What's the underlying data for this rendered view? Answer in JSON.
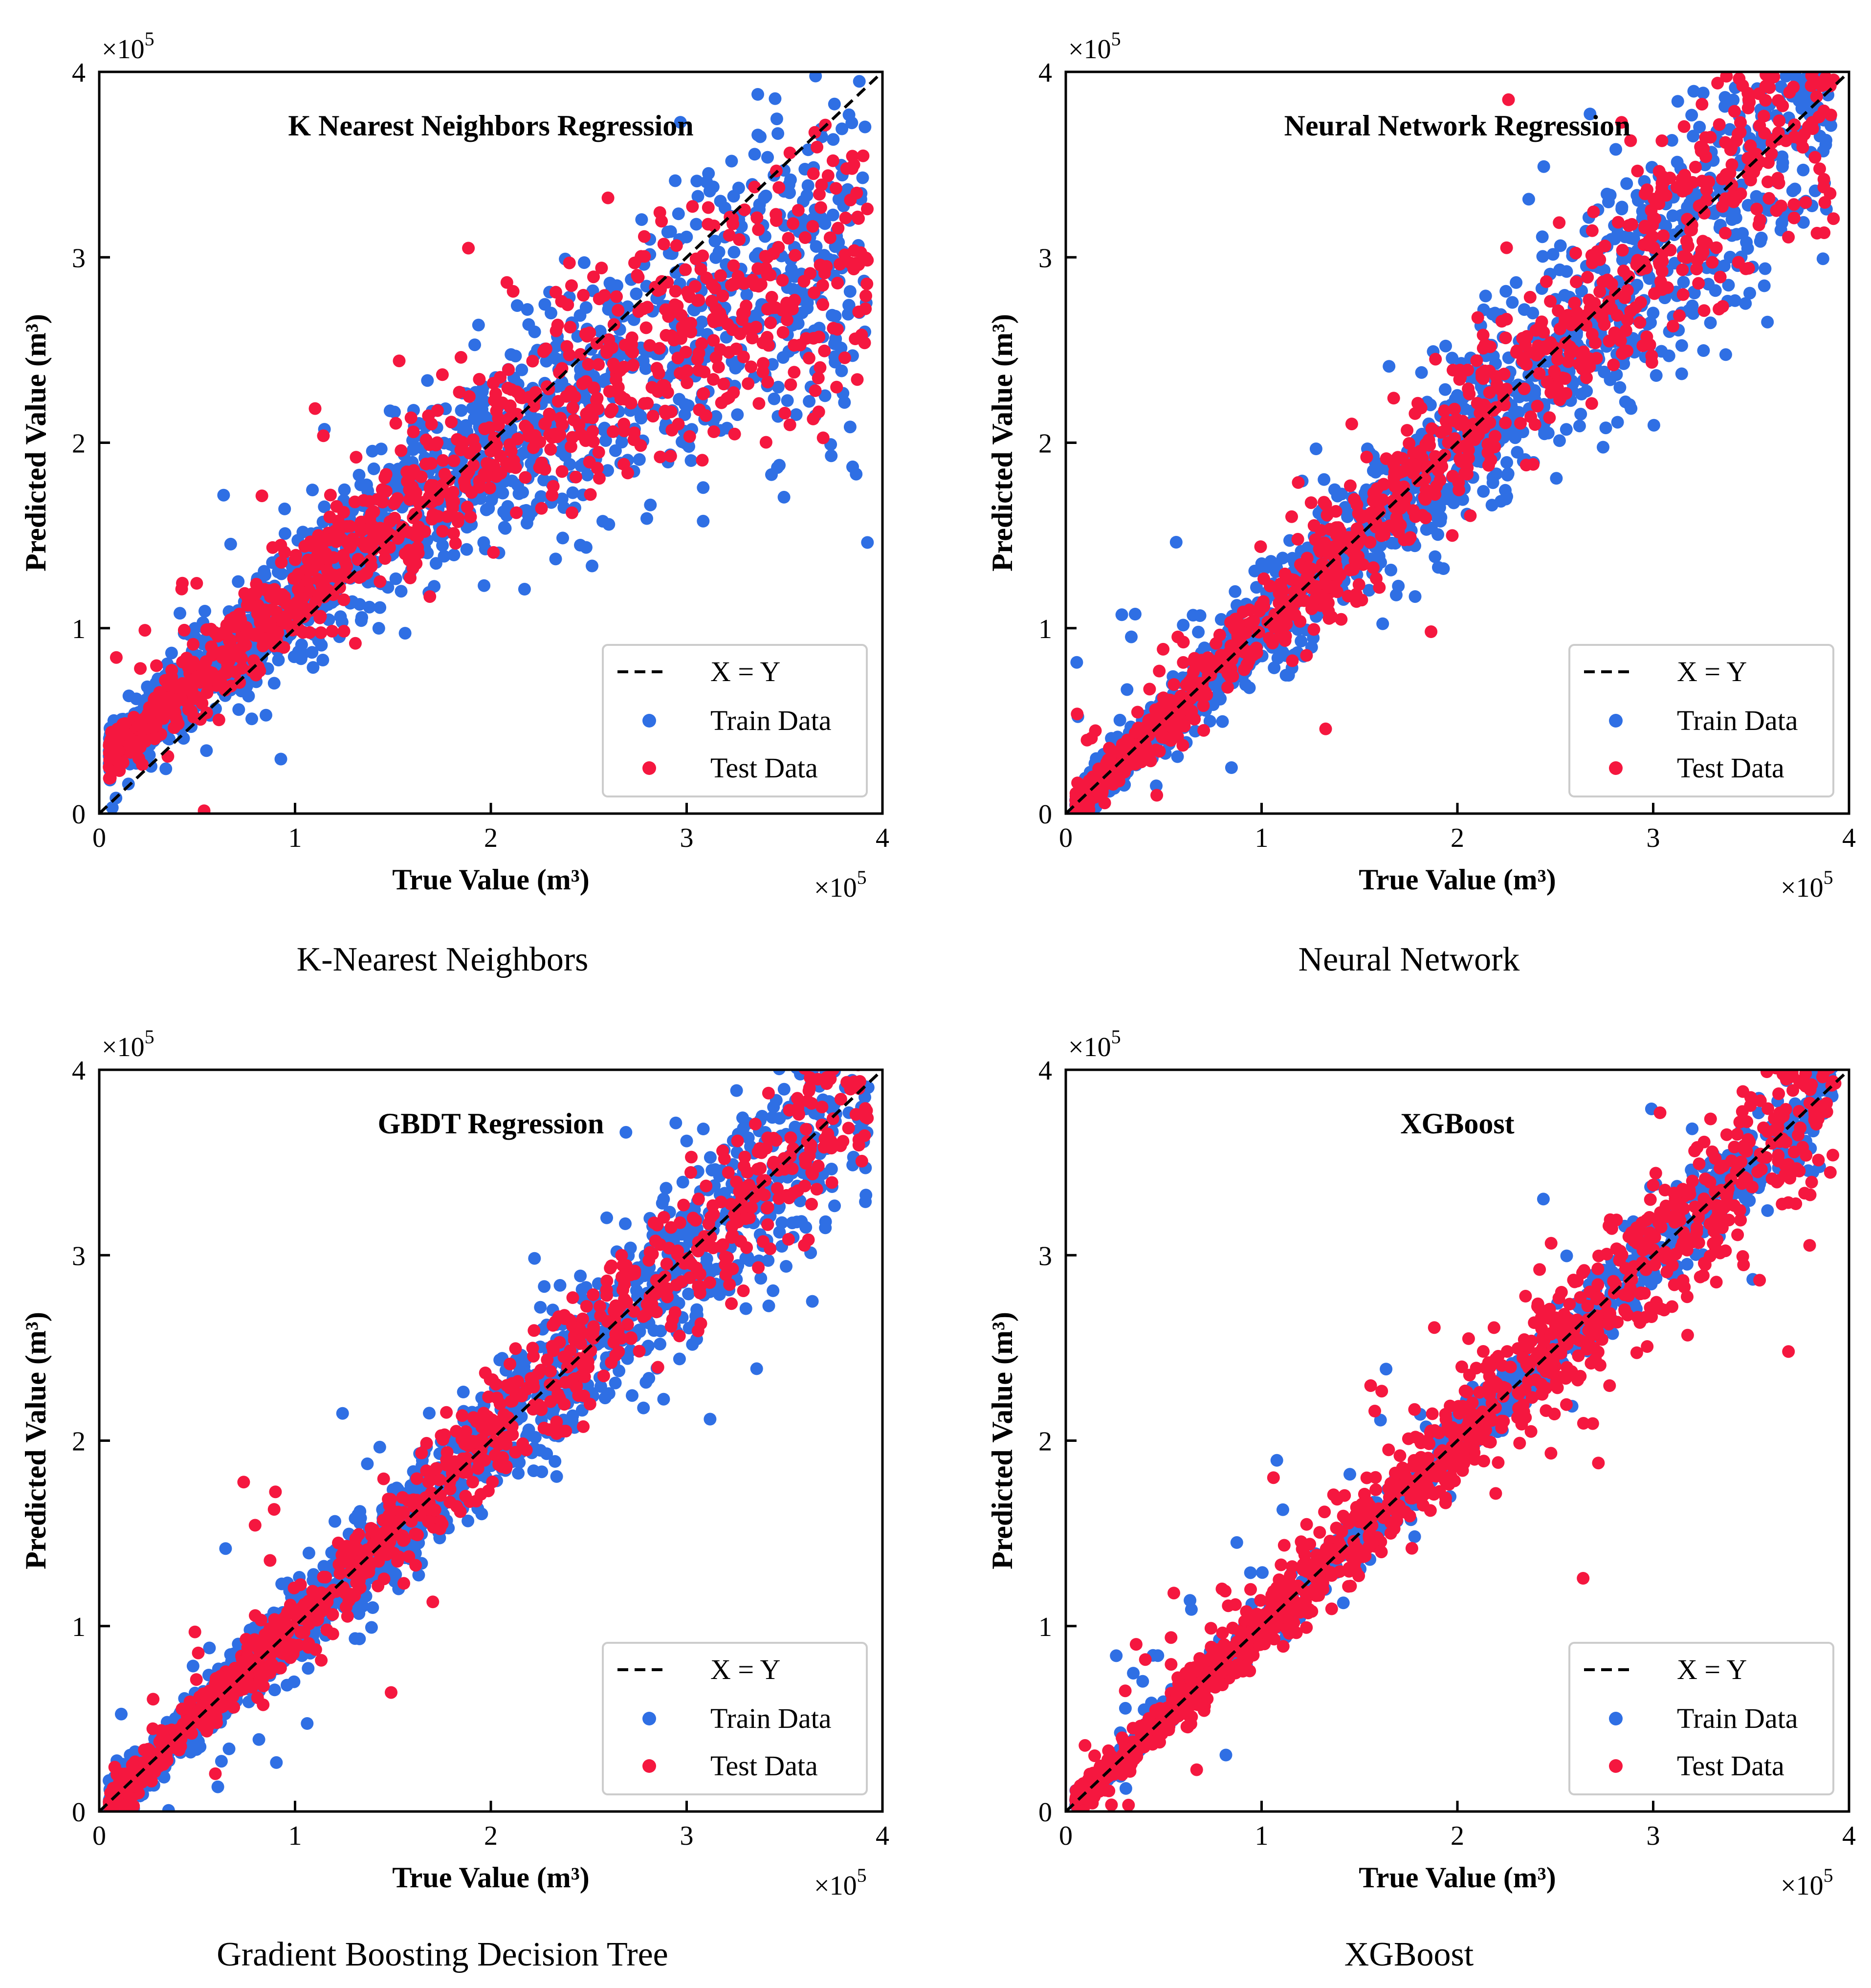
{
  "colors": {
    "train": "#2f6fe4",
    "test": "#f5173f",
    "axis": "#000000",
    "line": "#000000",
    "legend_border": "#cccccc"
  },
  "axes": {
    "xlabel": "True Value (m³)",
    "ylabel": "Predicted Value (m³)",
    "exponent_label": "×10",
    "exponent_power": "5",
    "tick_labels": [
      "0",
      "1",
      "2",
      "3",
      "4"
    ]
  },
  "legend": {
    "line_label": "X = Y",
    "train_label": "Train Data",
    "test_label": "Test Data"
  },
  "chart_data": [
    {
      "type": "scatter",
      "title": "K Nearest Neighbors Regression",
      "caption": "K-Nearest Neighbors",
      "xlabel": "True Value (m³)",
      "ylabel": "Predicted Value (m³)",
      "xlim": [
        0,
        4
      ],
      "ylim": [
        0,
        4
      ],
      "unit_multiplier": 100000,
      "series": [
        {
          "name": "Train Data",
          "color": "#2f6fe4",
          "n": 1500,
          "trend": "knn",
          "spread_abs": 0.06,
          "spread_rel": 0.12,
          "seed": 11
        },
        {
          "name": "Test Data",
          "color": "#f5173f",
          "n": 1000,
          "trend": "knn",
          "spread_abs": 0.05,
          "spread_rel": 0.09,
          "seed": 12
        }
      ],
      "reference_line": {
        "name": "X = Y",
        "x": [
          0,
          4
        ],
        "y": [
          0,
          4
        ]
      },
      "legend_position": "bottom-right"
    },
    {
      "type": "scatter",
      "title": "Neural Network Regression",
      "caption": "Neural Network",
      "xlabel": "True Value (m³)",
      "ylabel": "Predicted Value (m³)",
      "xlim": [
        0,
        4
      ],
      "ylim": [
        0,
        4
      ],
      "unit_multiplier": 100000,
      "series": [
        {
          "name": "Train Data",
          "color": "#2f6fe4",
          "n": 1500,
          "trend": "identity",
          "spread_abs": 0.04,
          "spread_rel": 0.1,
          "seed": 21
        },
        {
          "name": "Test Data",
          "color": "#f5173f",
          "n": 1000,
          "trend": "identity",
          "spread_abs": 0.03,
          "spread_rel": 0.08,
          "seed": 22
        }
      ],
      "reference_line": {
        "name": "X = Y",
        "x": [
          0,
          4
        ],
        "y": [
          0,
          4
        ]
      },
      "legend_position": "bottom-right"
    },
    {
      "type": "scatter",
      "title": "GBDT Regression",
      "caption": "Gradient Boosting Decision Tree",
      "xlabel": "True Value (m³)",
      "ylabel": "Predicted Value (m³)",
      "xlim": [
        0,
        4
      ],
      "ylim": [
        0,
        4
      ],
      "unit_multiplier": 100000,
      "series": [
        {
          "name": "Train Data",
          "color": "#2f6fe4",
          "n": 1500,
          "trend": "identity",
          "spread_abs": 0.04,
          "spread_rel": 0.07,
          "seed": 31
        },
        {
          "name": "Test Data",
          "color": "#f5173f",
          "n": 1000,
          "trend": "identity",
          "spread_abs": 0.03,
          "spread_rel": 0.06,
          "seed": 32
        }
      ],
      "reference_line": {
        "name": "X = Y",
        "x": [
          0,
          4
        ],
        "y": [
          0,
          4
        ]
      },
      "legend_position": "bottom-right"
    },
    {
      "type": "scatter",
      "title": "XGBoost",
      "caption": "XGBoost",
      "xlabel": "True Value (m³)",
      "ylabel": "Predicted Value (m³)",
      "xlim": [
        0,
        4
      ],
      "ylim": [
        0,
        4
      ],
      "unit_multiplier": 100000,
      "series": [
        {
          "name": "Train Data",
          "color": "#2f6fe4",
          "n": 1200,
          "trend": "identity",
          "spread_abs": 0.02,
          "spread_rel": 0.03,
          "seed": 41
        },
        {
          "name": "Test Data",
          "color": "#f5173f",
          "n": 1300,
          "trend": "identity",
          "spread_abs": 0.03,
          "spread_rel": 0.06,
          "seed": 42
        }
      ],
      "reference_line": {
        "name": "X = Y",
        "x": [
          0,
          4
        ],
        "y": [
          0,
          4
        ]
      },
      "legend_position": "bottom-right"
    }
  ]
}
